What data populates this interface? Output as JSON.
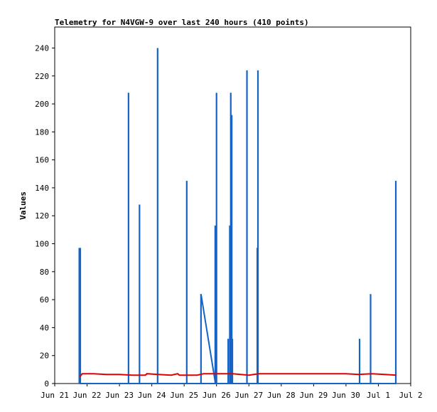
{
  "chart_data": {
    "type": "line",
    "title": "Telemetry for N4VGW-9 over last 240 hours (410 points)",
    "xlabel": "",
    "ylabel": "Values",
    "x_ticks": [
      "Jun 21",
      "Jun 22",
      "Jun 23",
      "Jun 24",
      "Jun 25",
      "Jun 26",
      "Jun 27",
      "Jun 28",
      "Jun 29",
      "Jun 30",
      "Jul 1",
      "Jul 2"
    ],
    "y_ticks": [
      0,
      20,
      40,
      60,
      80,
      100,
      120,
      140,
      160,
      180,
      200,
      220,
      240
    ],
    "xlim_days": [
      0,
      11
    ],
    "ylim": [
      0,
      255
    ],
    "grid": false,
    "colors": {
      "series_blue": "#1464c8",
      "series_red": "#e00000",
      "axis": "#000000"
    },
    "series": [
      {
        "color": "#1464c8",
        "style": "spikes",
        "values": [
          {
            "x": 0.76,
            "y": 97
          },
          {
            "x": 0.79,
            "y": 97
          },
          {
            "x": 2.28,
            "y": 208
          },
          {
            "x": 2.62,
            "y": 128
          },
          {
            "x": 3.18,
            "y": 240
          },
          {
            "x": 4.08,
            "y": 145
          },
          {
            "x": 4.52,
            "y": 64
          },
          {
            "x": 4.96,
            "y": 113
          },
          {
            "x": 5.0,
            "y": 208
          },
          {
            "x": 5.36,
            "y": 32
          },
          {
            "x": 5.41,
            "y": 113
          },
          {
            "x": 5.44,
            "y": 208
          },
          {
            "x": 5.47,
            "y": 192
          },
          {
            "x": 5.49,
            "y": 32
          },
          {
            "x": 5.94,
            "y": 224
          },
          {
            "x": 6.26,
            "y": 97
          },
          {
            "x": 6.28,
            "y": 224
          },
          {
            "x": 9.42,
            "y": 32
          },
          {
            "x": 9.76,
            "y": 64
          },
          {
            "x": 10.54,
            "y": 145
          }
        ],
        "segment": [
          {
            "x": 4.52,
            "y": 64
          },
          {
            "x": 4.96,
            "y": 1
          }
        ]
      },
      {
        "color": "#e00000",
        "style": "line",
        "values": [
          {
            "x": 0.78,
            "y": 5
          },
          {
            "x": 0.85,
            "y": 7
          },
          {
            "x": 1.2,
            "y": 7
          },
          {
            "x": 1.6,
            "y": 6.5
          },
          {
            "x": 2.0,
            "y": 6.5
          },
          {
            "x": 2.4,
            "y": 6
          },
          {
            "x": 2.8,
            "y": 6
          },
          {
            "x": 2.85,
            "y": 7
          },
          {
            "x": 3.2,
            "y": 6.5
          },
          {
            "x": 3.6,
            "y": 6
          },
          {
            "x": 3.8,
            "y": 7
          },
          {
            "x": 3.85,
            "y": 6
          },
          {
            "x": 4.4,
            "y": 6
          },
          {
            "x": 4.6,
            "y": 7
          },
          {
            "x": 5.0,
            "y": 7
          },
          {
            "x": 5.5,
            "y": 7
          },
          {
            "x": 6.0,
            "y": 6
          },
          {
            "x": 6.3,
            "y": 7
          },
          {
            "x": 7.0,
            "y": 7
          },
          {
            "x": 8.0,
            "y": 7
          },
          {
            "x": 9.0,
            "y": 7
          },
          {
            "x": 9.4,
            "y": 6.5
          },
          {
            "x": 9.8,
            "y": 7
          },
          {
            "x": 10.2,
            "y": 6.5
          },
          {
            "x": 10.56,
            "y": 6
          }
        ]
      }
    ]
  }
}
